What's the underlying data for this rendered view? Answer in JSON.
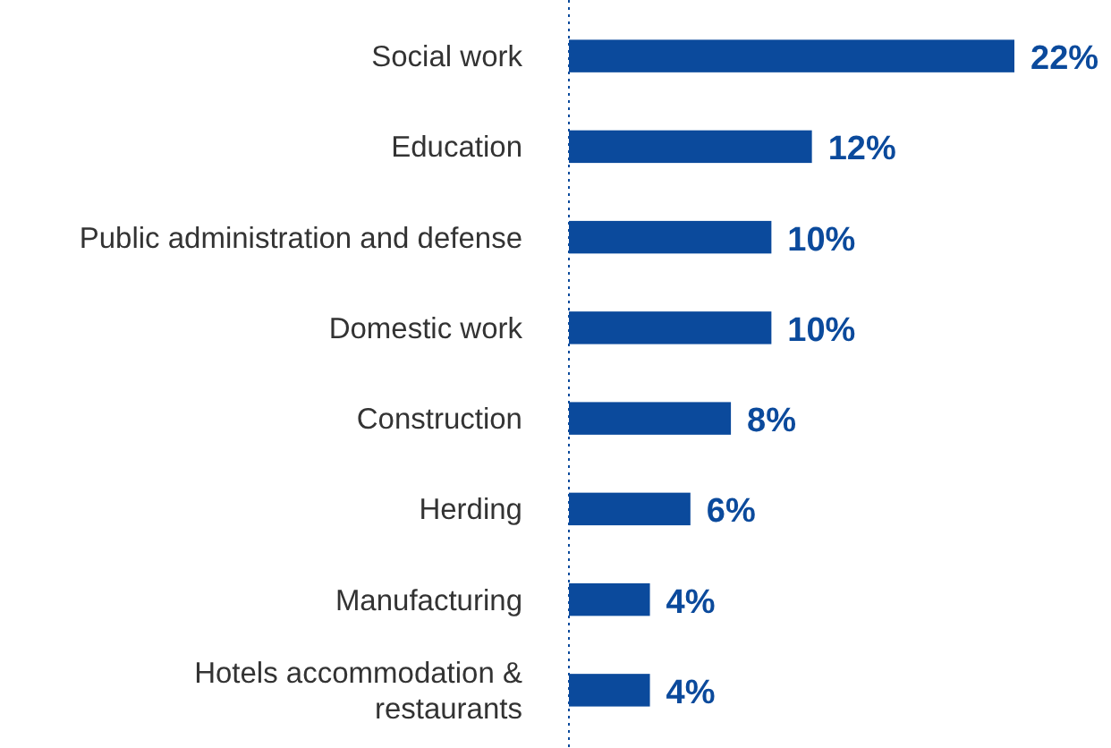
{
  "chart_data": {
    "type": "bar",
    "orientation": "horizontal",
    "categories": [
      "Social work",
      "Education",
      "Public administration and defense",
      "Domestic work",
      "Construction",
      "Herding",
      "Manufacturing",
      "Hotels accommodation & restaurants"
    ],
    "values": [
      22,
      12,
      10,
      10,
      8,
      6,
      4,
      4
    ],
    "value_labels": [
      "22%",
      "12%",
      "10%",
      "10%",
      "8%",
      "6%",
      "4%",
      "4%"
    ],
    "color": "#0b4a9c"
  }
}
